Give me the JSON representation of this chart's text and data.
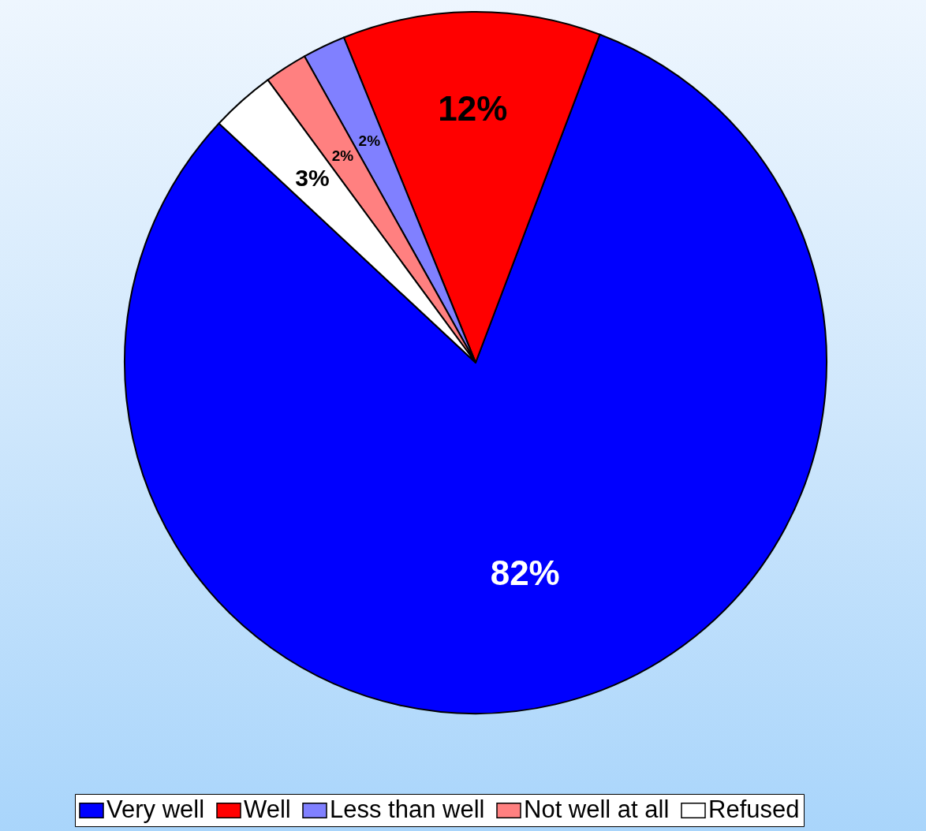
{
  "chart_data": {
    "type": "pie",
    "categories": [
      "Very well",
      "Well",
      "Less than well",
      "Not well at all",
      "Refused"
    ],
    "values": [
      82,
      12,
      2,
      2,
      3
    ],
    "colors": [
      "#0000ff",
      "#ff0000",
      "#8080ff",
      "#ff8080",
      "#ffffff"
    ],
    "value_labels": [
      "82%",
      "12%",
      "2%",
      "2%",
      "3%"
    ],
    "legend": "bottom"
  }
}
